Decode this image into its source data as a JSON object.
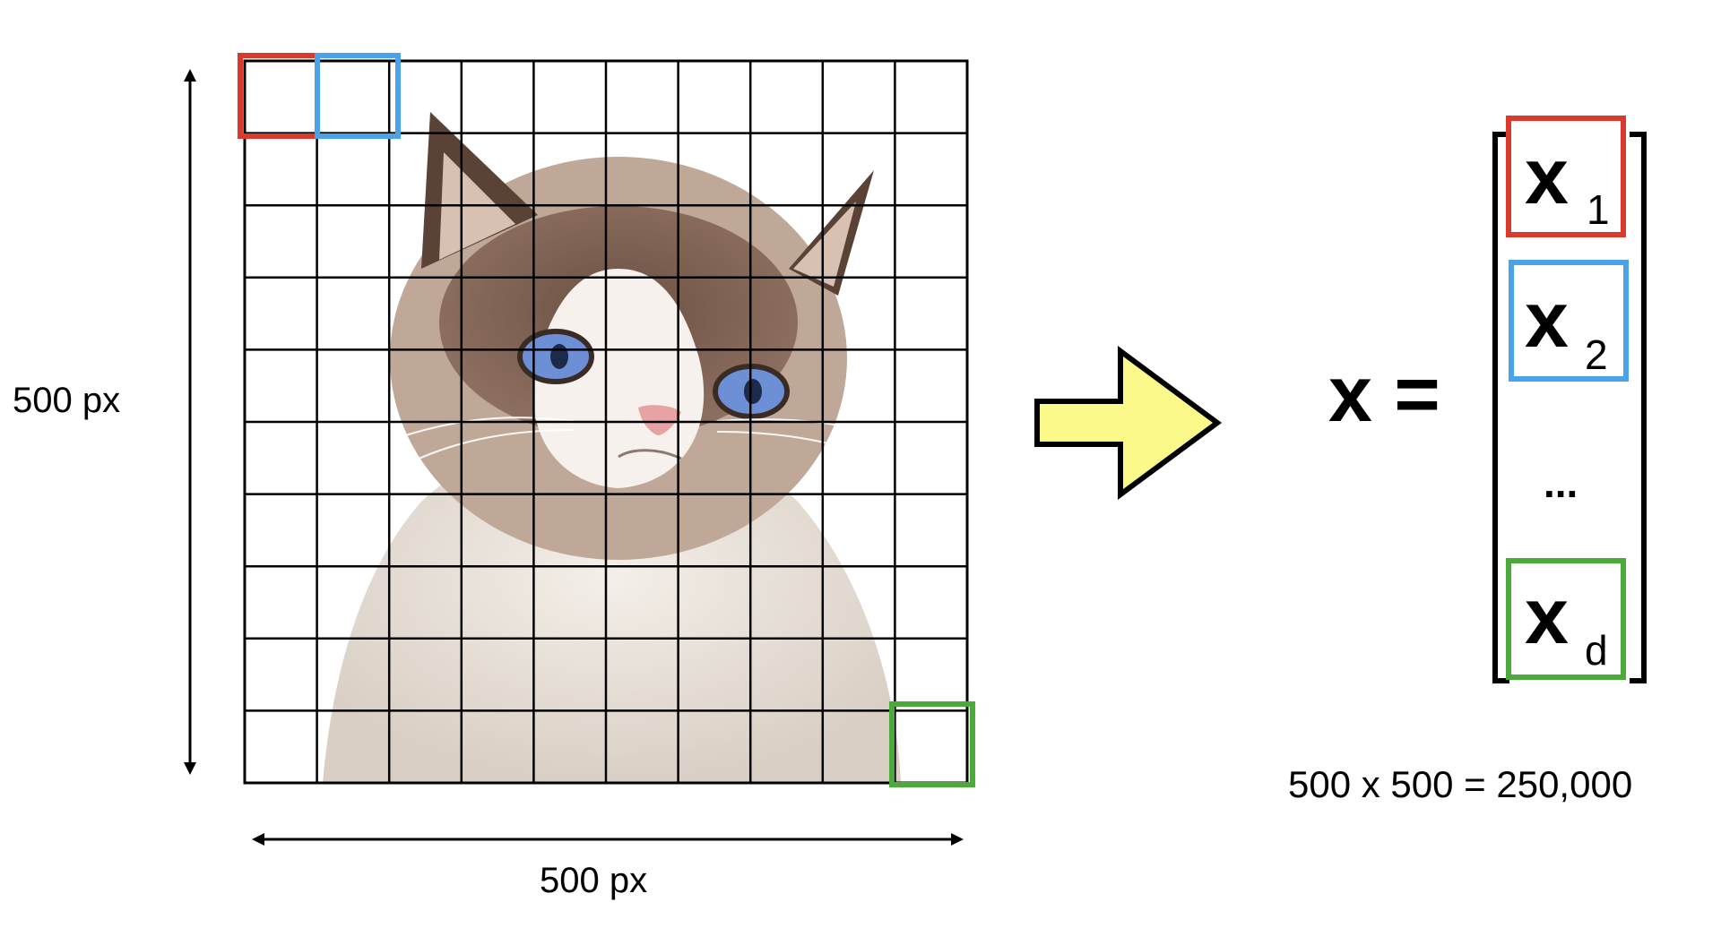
{
  "left_panel": {
    "height_label": "500 px",
    "width_label": "500 px",
    "grid_size": 10,
    "image_subject": "grumpy cat photo",
    "highlight_colors": {
      "first_pixel": "#d93a2b",
      "second_pixel": "#4aa3e8",
      "last_pixel": "#4caa3a"
    }
  },
  "arrow": {
    "fill": "#fbf98a",
    "stroke": "#000000"
  },
  "vector": {
    "lhs": "x =",
    "entries": [
      {
        "var": "x",
        "sub": "1",
        "color": "#d93a2b"
      },
      {
        "var": "x",
        "sub": "2",
        "color": "#4aa3e8"
      },
      {
        "ellipsis": "..."
      },
      {
        "var": "x",
        "sub": "d",
        "color": "#4caa3a"
      }
    ],
    "dimension_caption": "500 x 500 = 250,000"
  }
}
